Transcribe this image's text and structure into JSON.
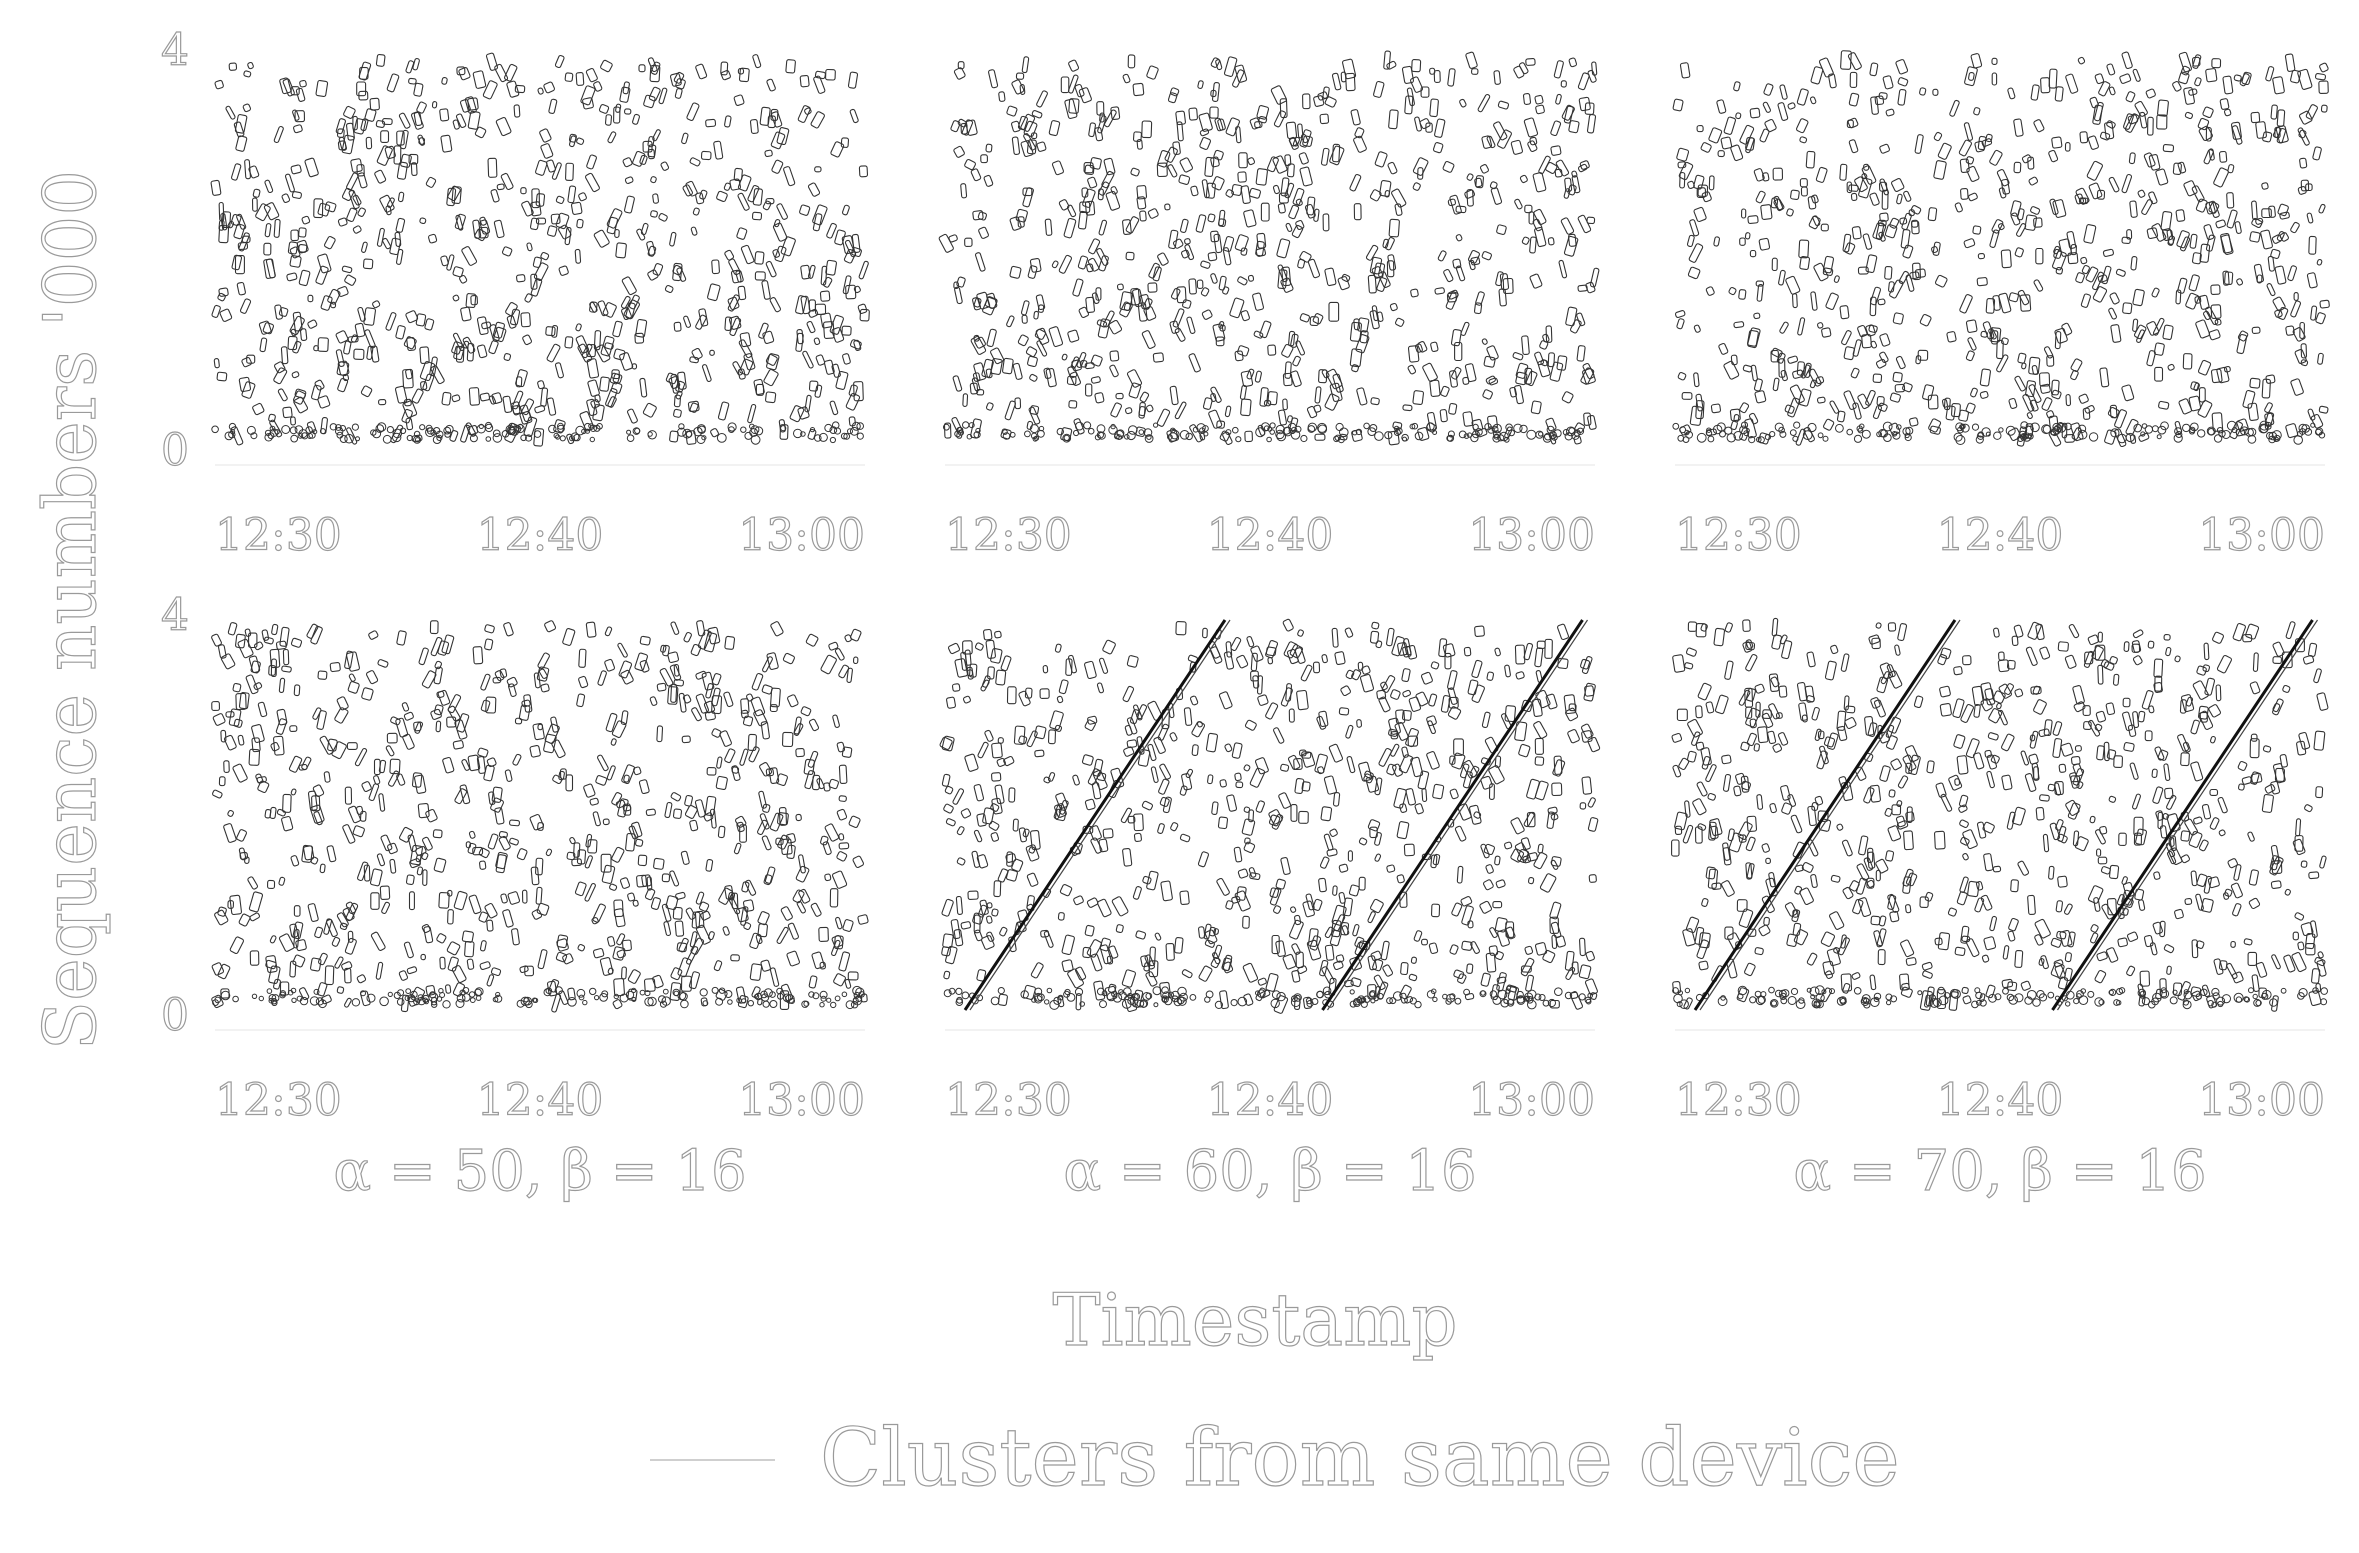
{
  "figure": {
    "ylabel": "Sequence numbers '000",
    "xlabel": "Timestamp",
    "legend": {
      "items": [
        {
          "label": "Clusters from same device",
          "color": "#222222"
        }
      ]
    }
  },
  "chart_data": [
    {
      "type": "scatter",
      "caption": "",
      "x_ticks": [
        "12:30",
        "12:40",
        "13:00"
      ],
      "y_ticks": [
        "0",
        "4"
      ],
      "ylim": [
        0,
        4
      ],
      "cluster_lines": 0,
      "seed": 11
    },
    {
      "type": "scatter",
      "caption": "",
      "x_ticks": [
        "12:30",
        "12:40",
        "13:00"
      ],
      "y_ticks": [],
      "ylim": [
        0,
        4
      ],
      "cluster_lines": 0,
      "seed": 23
    },
    {
      "type": "scatter",
      "caption": "",
      "x_ticks": [
        "12:30",
        "12:40",
        "13:00"
      ],
      "y_ticks": [],
      "ylim": [
        0,
        4
      ],
      "cluster_lines": 0,
      "seed": 37
    },
    {
      "type": "scatter",
      "caption": "α = 50, β = 16",
      "x_ticks": [
        "12:30",
        "12:40",
        "13:00"
      ],
      "y_ticks": [
        "0",
        "4"
      ],
      "ylim": [
        0,
        4
      ],
      "cluster_lines": 0,
      "seed": 41
    },
    {
      "type": "scatter",
      "caption": "α = 60, β = 16",
      "x_ticks": [
        "12:30",
        "12:40",
        "13:00"
      ],
      "y_ticks": [],
      "ylim": [
        0,
        4
      ],
      "cluster_lines": 2,
      "seed": 53
    },
    {
      "type": "scatter",
      "caption": "α = 70, β = 16",
      "x_ticks": [
        "12:30",
        "12:40",
        "13:00"
      ],
      "y_ticks": [],
      "ylim": [
        0,
        4
      ],
      "cluster_lines": 2,
      "seed": 67
    }
  ]
}
